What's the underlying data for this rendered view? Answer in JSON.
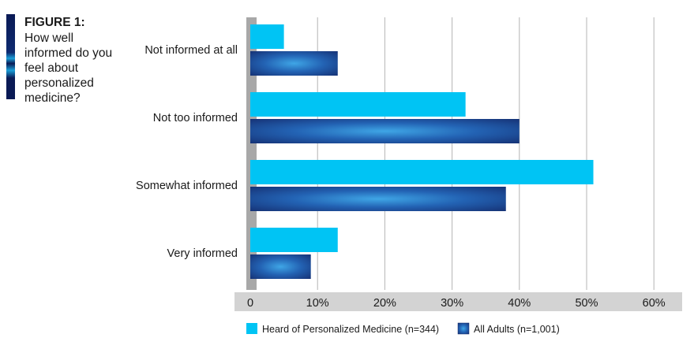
{
  "figure": {
    "title": "FIGURE 1:",
    "question": "How well informed do you feel about personalized medicine?"
  },
  "chart_data": {
    "type": "bar",
    "orientation": "horizontal",
    "title": "How well informed do you feel about personalized medicine?",
    "categories": [
      "Not informed at all",
      "Not too informed",
      "Somewhat informed",
      "Very informed"
    ],
    "series": [
      {
        "name": "Heard of Personalized Medicine (n=344)",
        "values": [
          5,
          32,
          51,
          13
        ],
        "color": "#00c4f4"
      },
      {
        "name": "All Adults (n=1,001)",
        "values": [
          13,
          40,
          38,
          9
        ],
        "color": "#1a3f8f"
      }
    ],
    "xlim": [
      0,
      60
    ],
    "ticks": [
      0,
      10,
      20,
      30,
      40,
      50,
      60
    ],
    "tick_labels": [
      "0",
      "10%",
      "20%",
      "30%",
      "40%",
      "50%",
      "60%"
    ],
    "xlabel": "",
    "ylabel": "",
    "grid": true,
    "legend_position": "bottom"
  }
}
